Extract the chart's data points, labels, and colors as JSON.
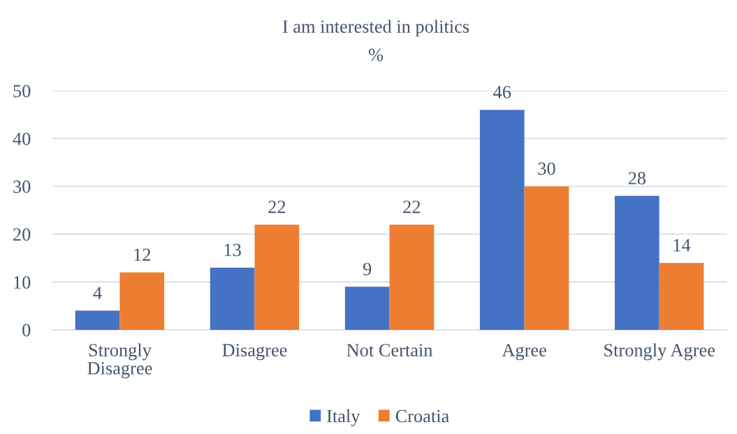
{
  "chart_data": {
    "type": "bar",
    "title": "I am interested in politics",
    "subtitle": "%",
    "categories": [
      "Strongly Disagree",
      "Disagree",
      "Not Certain",
      "Agree",
      "Strongly Agree"
    ],
    "series": [
      {
        "name": "Italy",
        "color": "#4472c4",
        "values": [
          4,
          13,
          9,
          46,
          28
        ]
      },
      {
        "name": "Croatia",
        "color": "#ed7d31",
        "values": [
          12,
          22,
          22,
          30,
          14
        ]
      }
    ],
    "ylim": [
      0,
      50
    ],
    "yticks": [
      0,
      10,
      20,
      30,
      40,
      50
    ],
    "grid": "y",
    "legend": "bottom",
    "data_labels": true
  }
}
